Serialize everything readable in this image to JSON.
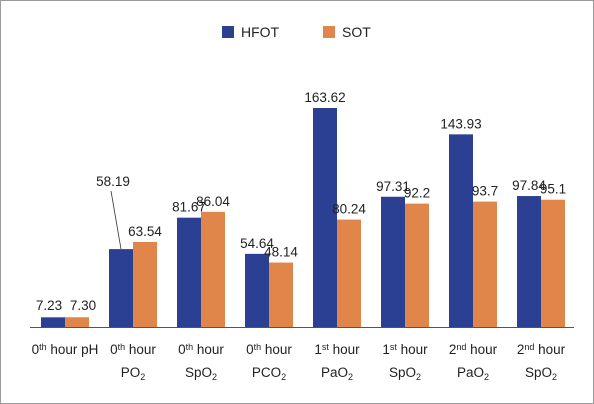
{
  "chart_data": {
    "type": "bar",
    "categories": [
      {
        "pre": "0",
        "sup": "th",
        "post": " hour pH",
        "line2_pre": "",
        "line2_sub": "",
        "line2_post": ""
      },
      {
        "pre": "0",
        "sup": "th",
        "post": " hour",
        "line2_pre": "PO",
        "line2_sub": "2",
        "line2_post": ""
      },
      {
        "pre": "0",
        "sup": "th",
        "post": " hour",
        "line2_pre": "SpO",
        "line2_sub": "2",
        "line2_post": ""
      },
      {
        "pre": "0",
        "sup": "th",
        "post": " hour",
        "line2_pre": "PCO",
        "line2_sub": "2",
        "line2_post": ""
      },
      {
        "pre": "1",
        "sup": "st",
        "post": " hour",
        "line2_pre": "PaO",
        "line2_sub": "2",
        "line2_post": ""
      },
      {
        "pre": "1",
        "sup": "st",
        "post": " hour",
        "line2_pre": "SpO",
        "line2_sub": "2",
        "line2_post": ""
      },
      {
        "pre": "2",
        "sup": "nd",
        "post": " hour",
        "line2_pre": "PaO",
        "line2_sub": "2",
        "line2_post": ""
      },
      {
        "pre": "2",
        "sup": "nd",
        "post": " hour",
        "line2_pre": "SpO",
        "line2_sub": "2",
        "line2_post": ""
      }
    ],
    "series": [
      {
        "name": "HFOT",
        "color": "#2b3f93",
        "values": [
          7.23,
          58.19,
          81.67,
          54.64,
          163.62,
          97.31,
          143.93,
          97.84
        ],
        "labels": [
          "7.23",
          "58.19",
          "81.67",
          "54.64",
          "163.62",
          "97.31",
          "143.93",
          "97.84"
        ]
      },
      {
        "name": "SOT",
        "color": "#e0864a",
        "values": [
          7.3,
          63.54,
          86.04,
          48.14,
          80.24,
          92.2,
          93.7,
          95.1
        ],
        "labels": [
          "7.30",
          "63.54",
          "86.04",
          "48.14",
          "80.24",
          "92.2",
          "93.7",
          "95.1"
        ]
      }
    ],
    "ylim": [
      0,
      175
    ],
    "grid": false,
    "legend": "top-center",
    "title": "",
    "xlabel": "",
    "ylabel": ""
  }
}
